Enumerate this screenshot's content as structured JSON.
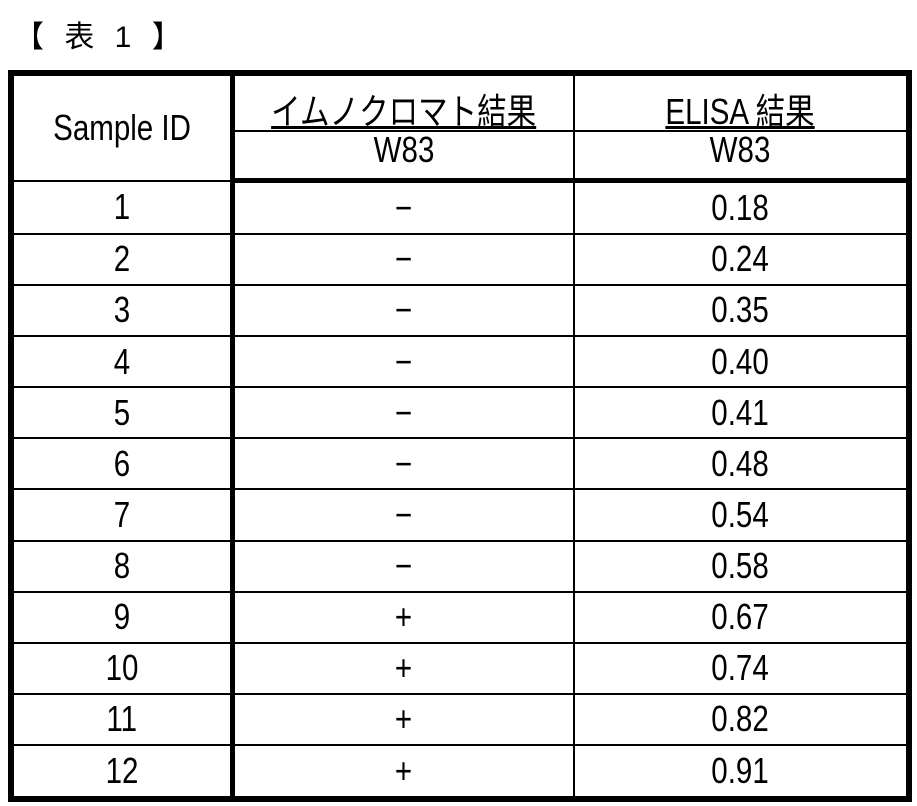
{
  "caption": "【 表 1 】",
  "table": {
    "header": {
      "sample_id": "Sample ID",
      "immuno": "イムノクロマト結果",
      "elisa": "ELISA 結果",
      "immuno_sub": "W83",
      "elisa_sub": "W83"
    },
    "rows": [
      {
        "id": "1",
        "immuno": "−",
        "elisa": "0.18"
      },
      {
        "id": "2",
        "immuno": "−",
        "elisa": "0.24"
      },
      {
        "id": "3",
        "immuno": "−",
        "elisa": "0.35"
      },
      {
        "id": "4",
        "immuno": "−",
        "elisa": "0.40"
      },
      {
        "id": "5",
        "immuno": "−",
        "elisa": "0.41"
      },
      {
        "id": "6",
        "immuno": "−",
        "elisa": "0.48"
      },
      {
        "id": "7",
        "immuno": "−",
        "elisa": "0.54"
      },
      {
        "id": "8",
        "immuno": "−",
        "elisa": "0.58"
      },
      {
        "id": "9",
        "immuno": "+",
        "elisa": "0.67"
      },
      {
        "id": "10",
        "immuno": "+",
        "elisa": "0.74"
      },
      {
        "id": "11",
        "immuno": "+",
        "elisa": "0.82"
      },
      {
        "id": "12",
        "immuno": "+",
        "elisa": "0.91"
      }
    ]
  }
}
